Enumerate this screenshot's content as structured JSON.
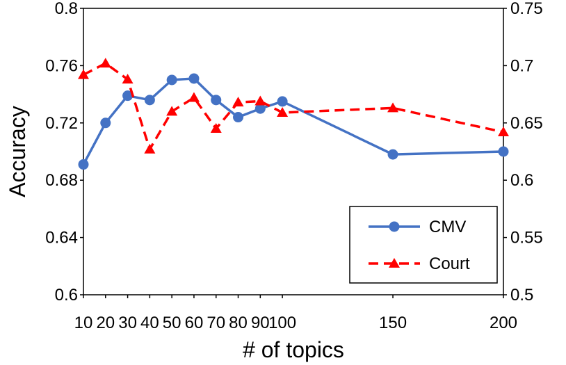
{
  "chart_data": {
    "type": "line",
    "title": "",
    "xlabel": "# of topics",
    "ylabel": "Accuracy",
    "x": [
      10,
      20,
      30,
      40,
      50,
      60,
      70,
      80,
      90,
      100,
      150,
      200
    ],
    "x_tick_labels": [
      "10",
      "20",
      "30",
      "40",
      "50",
      "60",
      "70",
      "80",
      "90",
      "100",
      "150",
      "200"
    ],
    "y_left_lim": [
      0.6,
      0.8
    ],
    "y_left_ticks": [
      "0.6",
      "0.64",
      "0.68",
      "0.72",
      "0.76",
      "0.8"
    ],
    "y_right_lim": [
      0.5,
      0.75
    ],
    "y_right_ticks": [
      "0.5",
      "0.55",
      "0.6",
      "0.65",
      "0.7",
      "0.75"
    ],
    "legend_position": "bottom-right",
    "series": [
      {
        "name": "CMV",
        "axis": "left",
        "color": "#4472C4",
        "style": "solid",
        "marker": "circle",
        "values": [
          0.691,
          0.72,
          0.739,
          0.736,
          0.75,
          0.751,
          0.736,
          0.724,
          0.73,
          0.735,
          0.698,
          0.7
        ]
      },
      {
        "name": "Court",
        "axis": "right",
        "color": "#FF0000",
        "style": "dashed",
        "marker": "triangle",
        "values": [
          0.692,
          0.702,
          0.688,
          0.627,
          0.66,
          0.672,
          0.645,
          0.668,
          0.669,
          0.659,
          0.663,
          0.642
        ]
      }
    ]
  }
}
